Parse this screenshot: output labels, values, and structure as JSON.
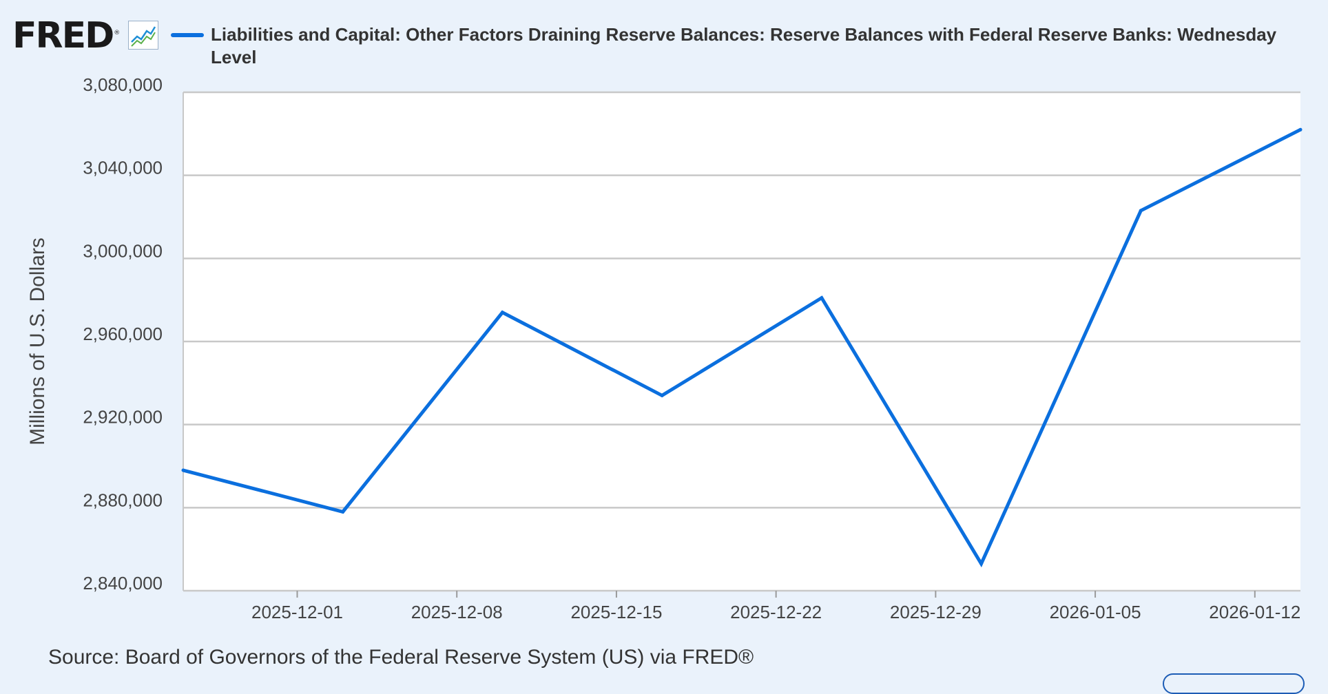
{
  "header": {
    "logo_text": "FRED",
    "logo_registered": "®",
    "logo_icon": "line-chart-icon"
  },
  "colors": {
    "series": "#0b6fde",
    "background": "#eaf2fb",
    "plot_background": "#ffffff",
    "grid": "#c8c8c8"
  },
  "chart_data": {
    "type": "line",
    "title": "",
    "xlabel": "",
    "ylabel": "Millions of U.S. Dollars",
    "ylim": [
      2840000,
      3080000
    ],
    "yticks": [
      2840000,
      2880000,
      2920000,
      2960000,
      3000000,
      3040000,
      3080000
    ],
    "ytick_labels": [
      "2,840,000",
      "2,880,000",
      "2,920,000",
      "2,960,000",
      "3,000,000",
      "3,040,000",
      "3,080,000"
    ],
    "xlim": [
      "2025-11-26",
      "2026-01-14"
    ],
    "xticks": [
      "2025-12-01",
      "2025-12-08",
      "2025-12-15",
      "2025-12-22",
      "2025-12-29",
      "2026-01-05",
      "2026-01-12"
    ],
    "grid": true,
    "legend_position": "top",
    "series": [
      {
        "name": "Liabilities and Capital: Other Factors Draining Reserve Balances: Reserve Balances with Federal Reserve Banks: Wednesday Level",
        "color": "#0b6fde",
        "x": [
          "2025-11-26",
          "2025-12-03",
          "2025-12-10",
          "2025-12-17",
          "2025-12-24",
          "2025-12-31",
          "2026-01-07",
          "2026-01-14"
        ],
        "y": [
          2898000,
          2878000,
          2974000,
          2934000,
          2981000,
          2853000,
          3023000,
          3062000
        ]
      }
    ]
  },
  "footer": {
    "source": "Source: Board of Governors of the Federal Reserve System (US) via FRED®"
  }
}
